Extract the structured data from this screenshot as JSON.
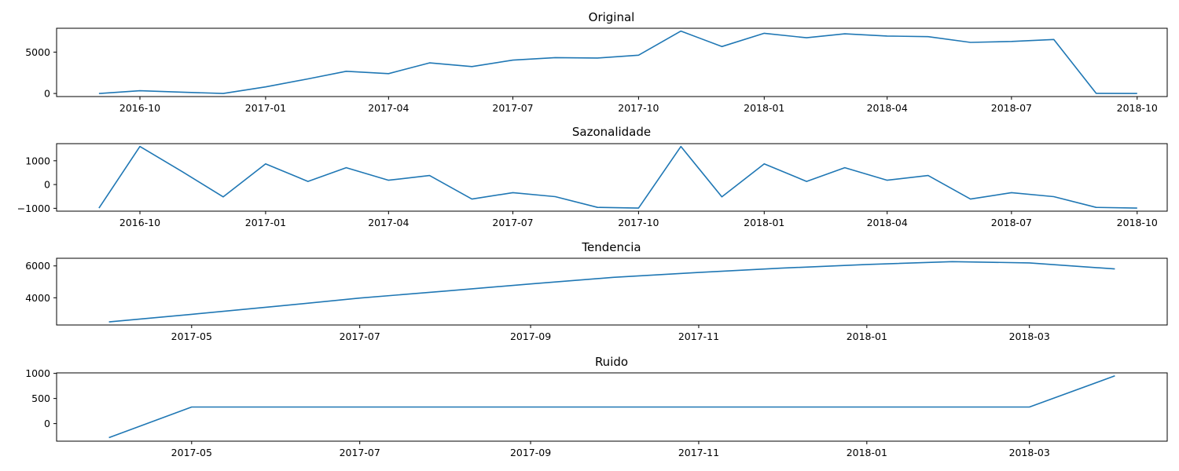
{
  "chart_data": [
    {
      "type": "line",
      "title": "Original",
      "xlabel": "",
      "ylabel": "",
      "x": [
        "2016-09-01",
        "2016-10-01",
        "2016-11-01",
        "2016-12-01",
        "2017-01-01",
        "2017-02-01",
        "2017-03-01",
        "2017-04-01",
        "2017-05-01",
        "2017-06-01",
        "2017-07-01",
        "2017-08-01",
        "2017-09-01",
        "2017-10-01",
        "2017-11-01",
        "2017-12-01",
        "2018-01-01",
        "2018-02-01",
        "2018-03-01",
        "2018-04-01",
        "2018-05-01",
        "2018-06-01",
        "2018-07-01",
        "2018-08-01",
        "2018-09-01",
        "2018-10-01"
      ],
      "values": [
        0,
        330,
        160,
        0,
        800,
        1760,
        2680,
        2400,
        3700,
        3250,
        4030,
        4330,
        4290,
        4630,
        7540,
        5670,
        7270,
        6730,
        7210,
        6940,
        6870,
        6170,
        6290,
        6520,
        20,
        0
      ],
      "xlim": [
        "2016-08-01",
        "2018-10-23"
      ],
      "ylim": [
        -370,
        7880
      ],
      "xticks": [
        "2016-10",
        "2017-01",
        "2017-04",
        "2017-07",
        "2017-10",
        "2018-01",
        "2018-04",
        "2018-07",
        "2018-10"
      ],
      "yticks": [
        0,
        5000
      ],
      "grid": false
    },
    {
      "type": "line",
      "title": "Sazonalidade",
      "xlabel": "",
      "ylabel": "",
      "x": [
        "2016-09-01",
        "2016-10-01",
        "2016-11-01",
        "2016-12-01",
        "2017-01-01",
        "2017-02-01",
        "2017-03-01",
        "2017-04-01",
        "2017-05-01",
        "2017-06-01",
        "2017-07-01",
        "2017-08-01",
        "2017-09-01",
        "2017-10-01",
        "2017-11-01",
        "2017-12-01",
        "2018-01-01",
        "2018-02-01",
        "2018-03-01",
        "2018-04-01",
        "2018-05-01",
        "2018-06-01",
        "2018-07-01",
        "2018-08-01",
        "2018-09-01",
        "2018-10-01"
      ],
      "values": [
        -990,
        1600,
        540,
        -520,
        870,
        130,
        710,
        180,
        380,
        -610,
        -340,
        -510,
        -960,
        -990,
        1600,
        -520,
        870,
        130,
        710,
        180,
        380,
        -610,
        -340,
        -510,
        -960,
        -990
      ],
      "xlim": [
        "2016-08-01",
        "2018-10-23"
      ],
      "ylim": [
        -1120,
        1720
      ],
      "xticks": [
        "2016-10",
        "2017-01",
        "2017-04",
        "2017-07",
        "2017-10",
        "2018-01",
        "2018-04",
        "2018-07",
        "2018-10"
      ],
      "yticks": [
        -1000,
        0,
        1000
      ],
      "grid": false
    },
    {
      "type": "line",
      "title": "Tendencia",
      "xlabel": "",
      "ylabel": "",
      "x": [
        "2017-04-01",
        "2017-05-01",
        "2017-06-01",
        "2017-07-01",
        "2017-08-01",
        "2017-09-01",
        "2017-10-01",
        "2017-11-01",
        "2017-12-01",
        "2018-01-01",
        "2018-02-01",
        "2018-03-01",
        "2018-04-01"
      ],
      "values": [
        2480,
        2960,
        3470,
        3980,
        4420,
        4870,
        5280,
        5590,
        5860,
        6090,
        6270,
        6190,
        5810
      ],
      "xlim": [
        "2017-03-13",
        "2018-04-20"
      ],
      "ylim": [
        2290,
        6480
      ],
      "xticks": [
        "2017-05",
        "2017-07",
        "2017-09",
        "2017-11",
        "2018-01",
        "2018-03"
      ],
      "yticks": [
        4000,
        6000
      ],
      "grid": false
    },
    {
      "type": "line",
      "title": "Ruido",
      "xlabel": "",
      "ylabel": "",
      "x": [
        "2017-04-01",
        "2017-05-01",
        "2017-06-01",
        "2017-07-01",
        "2017-08-01",
        "2017-09-01",
        "2017-10-01",
        "2017-11-01",
        "2017-12-01",
        "2018-01-01",
        "2018-02-01",
        "2018-03-01",
        "2018-04-01"
      ],
      "values": [
        -280,
        330,
        330,
        330,
        330,
        330,
        330,
        330,
        330,
        330,
        330,
        330,
        950
      ],
      "xlim": [
        "2017-03-13",
        "2018-04-20"
      ],
      "ylim": [
        -350,
        1010
      ],
      "xticks": [
        "2017-05",
        "2017-07",
        "2017-09",
        "2017-11",
        "2018-01",
        "2018-03"
      ],
      "yticks": [
        0,
        500,
        1000
      ],
      "grid": false
    }
  ],
  "colors": {
    "series": "#1f77b4",
    "axes": "#000000"
  }
}
